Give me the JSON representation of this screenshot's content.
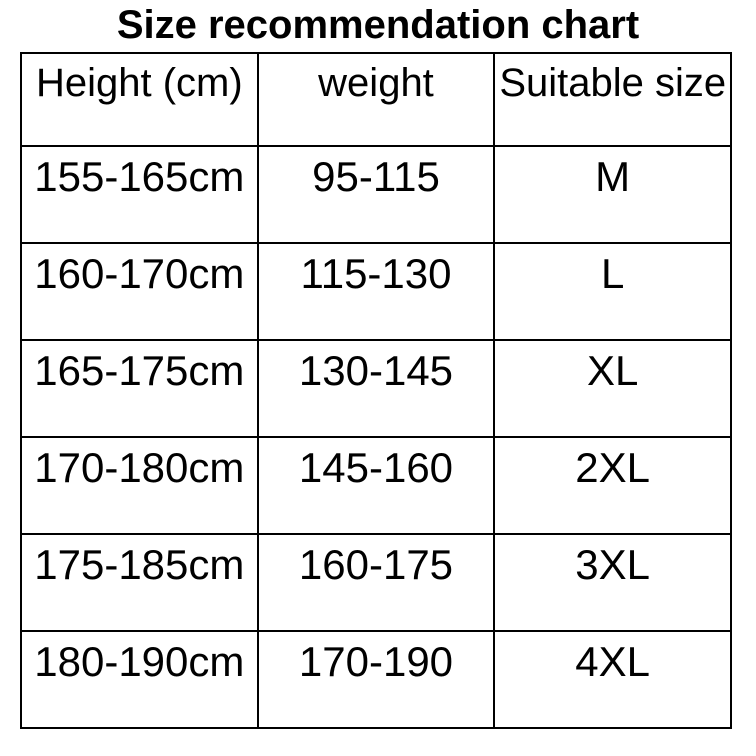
{
  "title": "Size recommendation chart",
  "table": {
    "columns": [
      {
        "label": "Height (cm)"
      },
      {
        "label": "weight"
      },
      {
        "label": "Suitable size"
      }
    ],
    "rows": [
      {
        "height": "155-165cm",
        "weight": "95-115",
        "size": "M"
      },
      {
        "height": "160-170cm",
        "weight": "115-130",
        "size": "L"
      },
      {
        "height": "165-175cm",
        "weight": "130-145",
        "size": "XL"
      },
      {
        "height": "170-180cm",
        "weight": "145-160",
        "size": "2XL"
      },
      {
        "height": "175-185cm",
        "weight": "160-175",
        "size": "3XL"
      },
      {
        "height": "180-190cm",
        "weight": "170-190",
        "size": "4XL"
      }
    ]
  },
  "colors": {
    "background": "#ffffff",
    "text": "#000000",
    "grid": "#000000"
  },
  "chart_data": {
    "type": "table",
    "title": "Size recommendation chart",
    "columns": [
      "Height (cm)",
      "weight",
      "Suitable size"
    ],
    "rows": [
      [
        "155-165cm",
        "95-115",
        "M"
      ],
      [
        "160-170cm",
        "115-130",
        "L"
      ],
      [
        "165-175cm",
        "130-145",
        "XL"
      ],
      [
        "170-180cm",
        "145-160",
        "2XL"
      ],
      [
        "175-185cm",
        "160-175",
        "3XL"
      ],
      [
        "180-190cm",
        "170-190",
        "4XL"
      ]
    ],
    "notes": "grid on, black 2px rules, white background, text top-aligned in cells"
  }
}
